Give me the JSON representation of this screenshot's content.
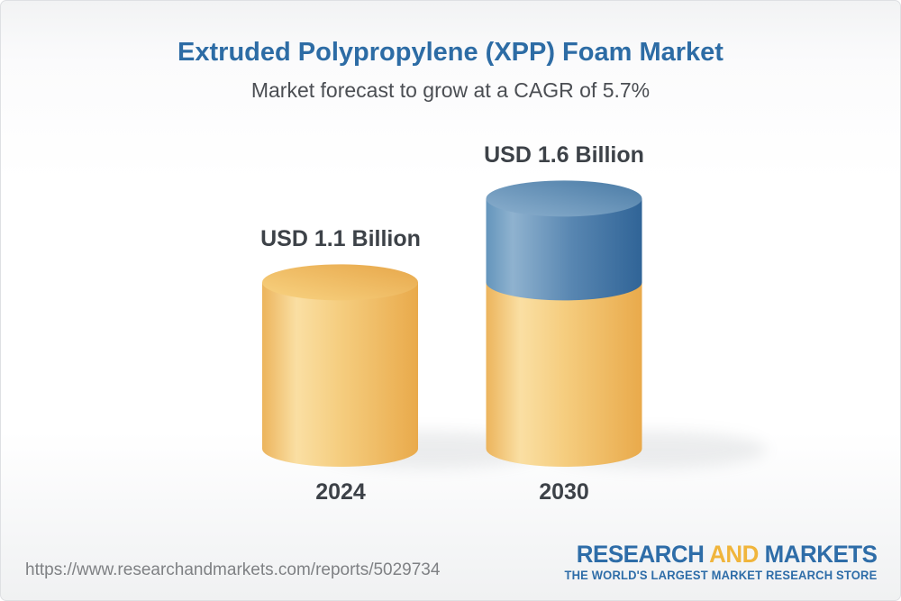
{
  "header": {
    "title": "Extruded Polypropylene (XPP) Foam Market",
    "subtitle": "Market forecast to grow at a CAGR of 5.7%"
  },
  "chart_data": {
    "type": "bar",
    "title": "Extruded Polypropylene (XPP) Foam Market",
    "subtitle": "Market forecast to grow at a CAGR of 5.7%",
    "unit": "USD Billion",
    "cagr_percent": 5.7,
    "categories": [
      "2024",
      "2030"
    ],
    "values": [
      1.1,
      1.6
    ],
    "value_labels": [
      "USD 1.1 Billion",
      "USD 1.6 Billion"
    ],
    "legend": "none",
    "grid": false,
    "bars": [
      {
        "category": "2024",
        "value": 1.1,
        "label": "USD 1.1 Billion",
        "segments": [
          {
            "name": "base",
            "value": 1.1,
            "color": "#F2C46E"
          }
        ]
      },
      {
        "category": "2030",
        "value": 1.6,
        "label": "USD 1.6 Billion",
        "segments": [
          {
            "name": "base",
            "value": 1.1,
            "color": "#F2C46E"
          },
          {
            "name": "growth",
            "value": 0.5,
            "color": "#5F8DB6"
          }
        ]
      }
    ],
    "colors": {
      "bar_yellow": "#F2C46E",
      "bar_blue": "#5F8DB6",
      "label_text": "#3D4248",
      "title_text": "#2D6CA5",
      "subtitle_text": "#4B4E53"
    }
  },
  "footer": {
    "url": "https://www.researchandmarkets.com/reports/5029734",
    "logo": {
      "word1": "RESEARCH",
      "word2": "AND",
      "word3": "MARKETS",
      "tagline": "THE WORLD'S LARGEST MARKET RESEARCH STORE",
      "blue": "#2E6DA8",
      "yellow": "#F0B53C"
    }
  }
}
